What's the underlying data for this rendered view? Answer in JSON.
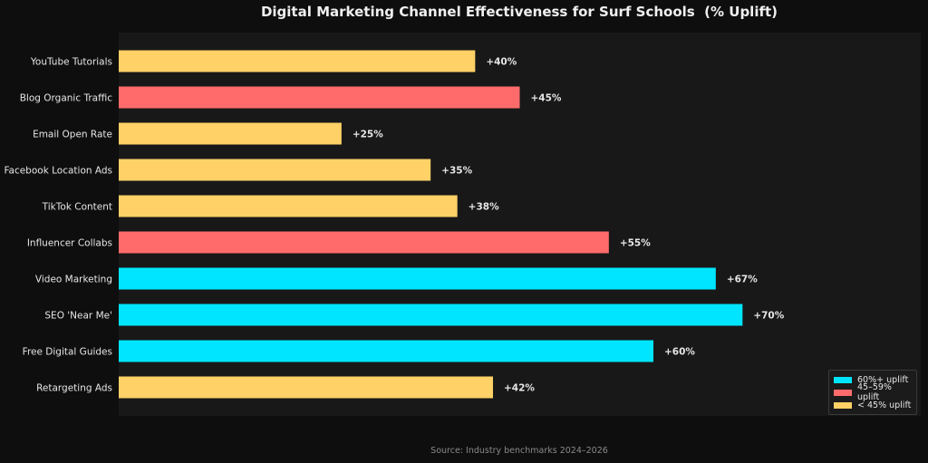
{
  "chart_data": {
    "type": "bar",
    "orientation": "horizontal",
    "title": "Digital Marketing Channel Effectiveness for Surf Schools  (% Uplift)",
    "categories": [
      "YouTube Tutorials",
      "Blog Organic Traffic",
      "Email Open Rate",
      "Facebook Location Ads",
      "TikTok Content",
      "Influencer Collabs",
      "Video Marketing",
      "SEO 'Near Me'",
      "Free Digital Guides",
      "Retargeting Ads"
    ],
    "values": [
      40,
      45,
      25,
      35,
      38,
      55,
      67,
      70,
      60,
      42
    ],
    "data_labels": [
      "+40%",
      "+45%",
      "+25%",
      "+35%",
      "+38%",
      "+55%",
      "+67%",
      "+70%",
      "+60%",
      "+42%"
    ],
    "bar_colors": [
      "#ffd166",
      "#ff6b6b",
      "#ffd166",
      "#ffd166",
      "#ffd166",
      "#ff6b6b",
      "#00e5ff",
      "#00e5ff",
      "#00e5ff",
      "#ffd166"
    ],
    "xlim": [
      0,
      90
    ],
    "grid": false,
    "legend": {
      "placement": "bottom-right",
      "entries": [
        {
          "label": "60%+ uplift",
          "color": "#00e5ff"
        },
        {
          "label": "45–59% uplift",
          "color": "#ff6b6b"
        },
        {
          "label": "< 45% uplift",
          "color": "#ffd166"
        }
      ]
    },
    "source": "Source: Industry benchmarks 2024–2026"
  },
  "colors": {
    "background": "#0e0e0e",
    "plot_background": "#181818",
    "text": "#e6e6e6"
  }
}
